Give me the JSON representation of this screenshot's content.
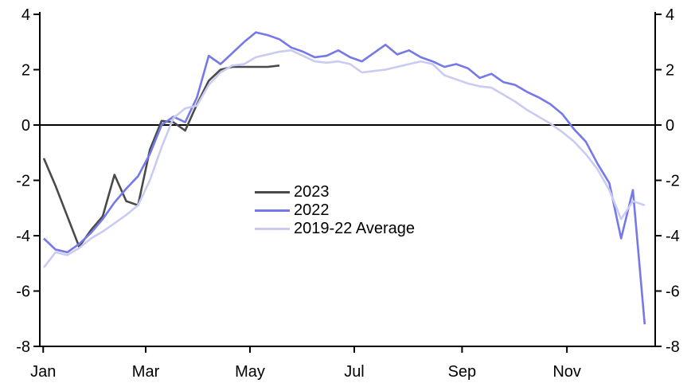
{
  "chart_data": {
    "type": "line",
    "title": "",
    "x_axis": {
      "unit": "week-of-year",
      "tick_labels": [
        "Jan",
        "Mar",
        "May",
        "Jul",
        "Sep",
        "Nov"
      ],
      "tick_weeks": [
        0.95,
        9.65,
        18.5,
        27.35,
        36.5,
        45.4
      ],
      "week_range": [
        1,
        52
      ]
    },
    "y_axis": {
      "range": [
        -8,
        4
      ],
      "ticks": [
        4,
        2,
        0,
        -2,
        -4,
        -6,
        -8
      ],
      "tick_labels": [
        "4",
        "2",
        "0",
        "-2",
        "-4",
        "-6",
        "-8"
      ],
      "mirrored_right_axis": true,
      "zero_line": true,
      "gridlines": false
    },
    "legend_position": "center",
    "series": [
      {
        "name": "2023",
        "color": "#4a4a4a",
        "start_week": 1,
        "values": [
          -1.2,
          -2.2,
          -3.3,
          -4.4,
          -3.8,
          -3.3,
          -1.8,
          -2.75,
          -2.9,
          -0.9,
          0.15,
          0.1,
          -0.2,
          0.75,
          1.6,
          2.0,
          2.1,
          2.1,
          2.1,
          2.1,
          2.15
        ]
      },
      {
        "name": "2022",
        "color": "#7478e8",
        "start_week": 1,
        "values": [
          -4.1,
          -4.5,
          -4.6,
          -4.3,
          -3.9,
          -3.4,
          -2.8,
          -2.3,
          -1.85,
          -1.05,
          0.0,
          0.3,
          0.1,
          1.0,
          2.5,
          2.2,
          2.6,
          3.0,
          3.35,
          3.25,
          3.1,
          2.8,
          2.65,
          2.45,
          2.5,
          2.7,
          2.45,
          2.3,
          2.6,
          2.9,
          2.55,
          2.7,
          2.45,
          2.3,
          2.1,
          2.2,
          2.05,
          1.7,
          1.85,
          1.55,
          1.45,
          1.2,
          1.0,
          0.75,
          0.4,
          -0.15,
          -0.6,
          -1.4,
          -2.1,
          -4.1,
          -2.35,
          -7.2
        ]
      },
      {
        "name": "2019-22 Average",
        "color": "#c9cbf3",
        "start_week": 1,
        "values": [
          -5.15,
          -4.6,
          -4.7,
          -4.45,
          -4.1,
          -3.85,
          -3.55,
          -3.25,
          -2.9,
          -2.0,
          -0.8,
          0.25,
          0.6,
          0.7,
          1.45,
          1.9,
          2.15,
          2.2,
          2.45,
          2.55,
          2.65,
          2.7,
          2.5,
          2.3,
          2.25,
          2.3,
          2.2,
          1.9,
          1.95,
          2.0,
          2.1,
          2.2,
          2.3,
          2.2,
          1.8,
          1.65,
          1.5,
          1.4,
          1.35,
          1.1,
          0.85,
          0.55,
          0.3,
          0.05,
          -0.25,
          -0.6,
          -1.05,
          -1.6,
          -2.35,
          -3.4,
          -2.75,
          -2.9
        ]
      }
    ]
  }
}
